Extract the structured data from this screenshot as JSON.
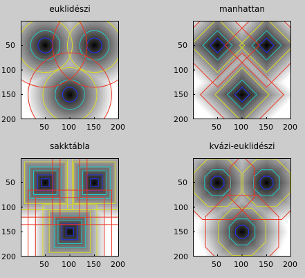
{
  "figure": {
    "background": "#cccccc"
  },
  "chart_data": [
    {
      "type": "heatmap",
      "title": "euklidészi",
      "metric": "euclidean",
      "grid_size": 200,
      "xlim": [
        1,
        200
      ],
      "ylim": [
        1,
        200
      ],
      "y_reversed": true,
      "xticks": [
        "50",
        "100",
        "150",
        "200"
      ],
      "yticks": [
        "50",
        "100",
        "150",
        "200"
      ],
      "seed_points": [
        [
          50,
          50
        ],
        [
          150,
          50
        ],
        [
          100,
          150
        ]
      ],
      "colormap": "gray",
      "contour_colors": [
        "#2233ff",
        "#22cccc",
        "#dddd22",
        "#ee3322"
      ],
      "contour_levels": [
        15,
        30,
        55,
        85
      ]
    },
    {
      "type": "heatmap",
      "title": "manhattan",
      "metric": "manhattan",
      "grid_size": 200,
      "xlim": [
        1,
        200
      ],
      "ylim": [
        1,
        200
      ],
      "y_reversed": true,
      "xticks": [
        "50",
        "100",
        "150",
        "200"
      ],
      "yticks": [
        "50",
        "100",
        "150",
        "200"
      ],
      "seed_points": [
        [
          50,
          50
        ],
        [
          150,
          50
        ],
        [
          100,
          150
        ]
      ],
      "colormap": "gray",
      "contour_colors": [
        "#2233ff",
        "#22cccc",
        "#dddd22",
        "#ee3322"
      ],
      "contour_levels": [
        15,
        30,
        55,
        85
      ]
    },
    {
      "type": "heatmap",
      "title": "sakktábla",
      "metric": "chessboard",
      "grid_size": 200,
      "xlim": [
        1,
        200
      ],
      "ylim": [
        1,
        200
      ],
      "y_reversed": true,
      "xticks": [
        "50",
        "100",
        "150",
        "200"
      ],
      "yticks": [
        "50",
        "100",
        "150",
        "200"
      ],
      "seed_points": [
        [
          50,
          50
        ],
        [
          150,
          50
        ],
        [
          100,
          150
        ]
      ],
      "colormap": "gray",
      "contour_colors": [
        "#2233ff",
        "#22cccc",
        "#dddd22",
        "#ee3322"
      ],
      "contour_levels": [
        8,
        16,
        24,
        32,
        42,
        55,
        70,
        85
      ]
    },
    {
      "type": "heatmap",
      "title": "kvázi-euklidészi",
      "metric": "quasi-euclidean",
      "grid_size": 200,
      "xlim": [
        1,
        200
      ],
      "ylim": [
        1,
        200
      ],
      "y_reversed": true,
      "xticks": [
        "50",
        "100",
        "150",
        "200"
      ],
      "yticks": [
        "50",
        "100",
        "150",
        "200"
      ],
      "seed_points": [
        [
          50,
          50
        ],
        [
          150,
          50
        ],
        [
          100,
          150
        ]
      ],
      "colormap": "gray",
      "contour_colors": [
        "#2233ff",
        "#22cccc",
        "#dddd22",
        "#ee3322"
      ],
      "contour_levels": [
        15,
        30,
        55,
        85
      ]
    }
  ]
}
